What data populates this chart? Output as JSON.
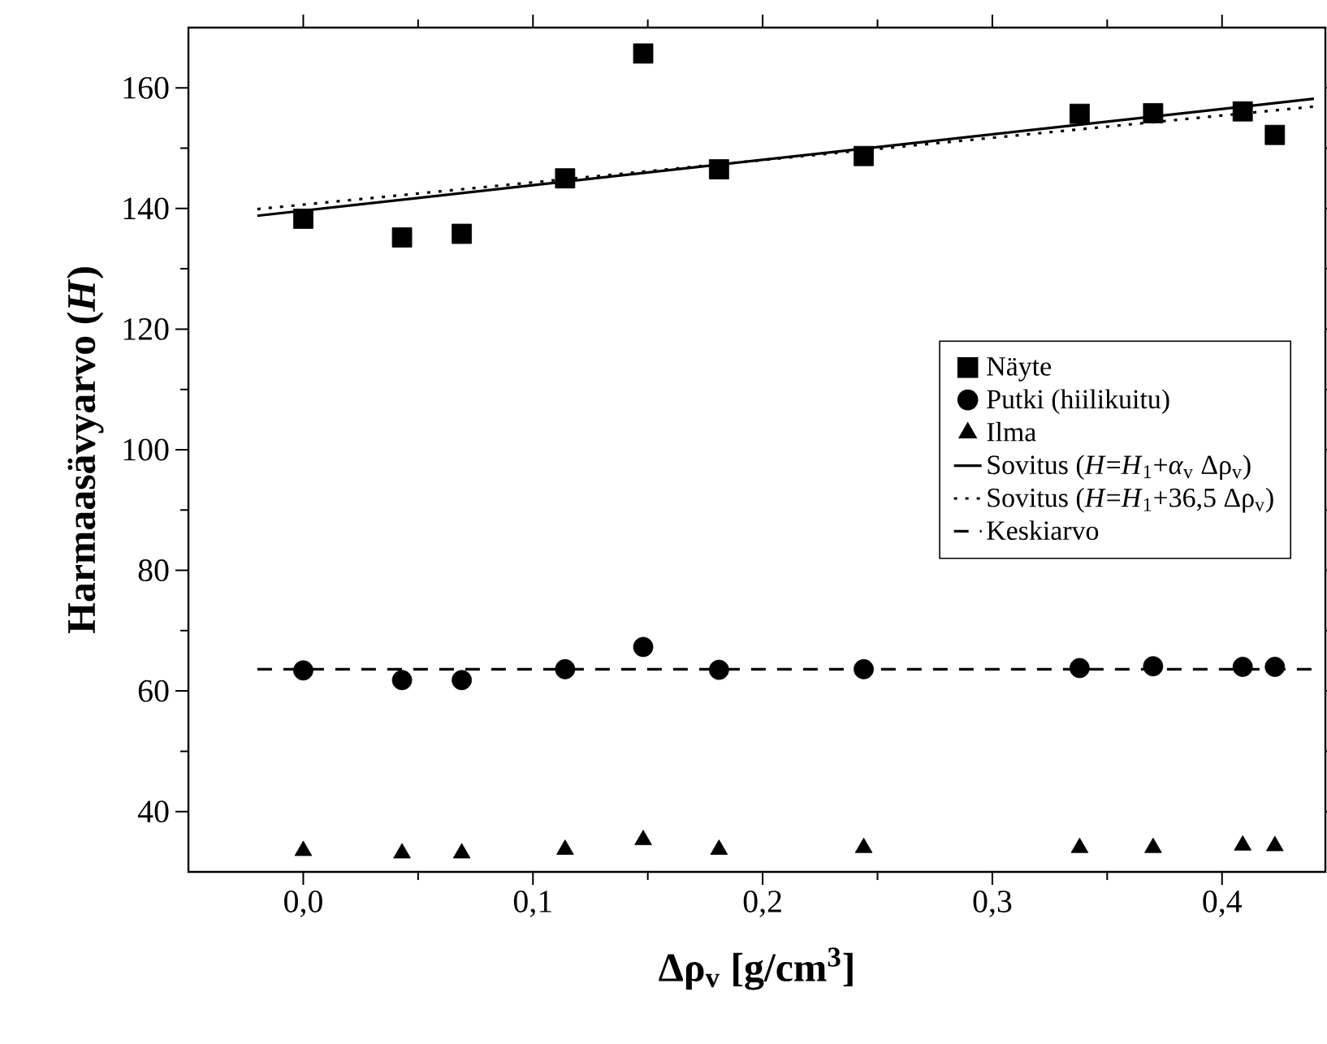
{
  "chart_data": {
    "type": "scatter",
    "xlabel": "Δρ$_{v}$ [g/cm$^{3}$]",
    "ylabel": "Harmaasävyarvo (*H*)",
    "xlim": [
      -0.05,
      0.445
    ],
    "ylim": [
      30,
      170
    ],
    "xticks": [
      {
        "value": 0,
        "label": "0,0"
      },
      {
        "value": 0.1,
        "label": "0,1"
      },
      {
        "value": 0.2,
        "label": "0,2"
      },
      {
        "value": 0.3,
        "label": "0,3"
      },
      {
        "value": 0.4,
        "label": "0,4"
      }
    ],
    "yticks": [
      40,
      60,
      80,
      100,
      120,
      140,
      160
    ],
    "legend": "right",
    "grid": false,
    "series": [
      {
        "name": "Näyte",
        "type": "scatter",
        "marker": "square",
        "color": "#000000",
        "x": [
          0.0,
          0.043,
          0.069,
          0.114,
          0.148,
          0.181,
          0.244,
          0.338,
          0.37,
          0.409,
          0.423
        ],
        "values": [
          138.3,
          135.2,
          135.8,
          145.0,
          165.7,
          146.5,
          148.7,
          155.7,
          155.8,
          156.1,
          152.2
        ]
      },
      {
        "name": "Putki (hiilikuitu)",
        "type": "scatter",
        "marker": "circle",
        "color": "#000000",
        "x": [
          0.0,
          0.043,
          0.069,
          0.114,
          0.148,
          0.181,
          0.244,
          0.338,
          0.37,
          0.409,
          0.423
        ],
        "values": [
          63.4,
          61.8,
          61.8,
          63.6,
          67.3,
          63.5,
          63.6,
          63.8,
          64.1,
          64.0,
          64.0
        ]
      },
      {
        "name": "Ilma",
        "type": "scatter",
        "marker": "triangle",
        "color": "#000000",
        "x": [
          0.0,
          0.043,
          0.069,
          0.114,
          0.148,
          0.181,
          0.244,
          0.338,
          0.37,
          0.409,
          0.423
        ],
        "values": [
          33.5,
          33.1,
          33.1,
          33.7,
          35.3,
          33.7,
          34.0,
          34.0,
          34.0,
          34.4,
          34.3
        ]
      },
      {
        "name": "Sovitus (*H*=*H*$_{1}$+*α*$_{v}$ Δρ$_{v}$)",
        "type": "line",
        "line_style": "solid",
        "color": "#000000",
        "x": [
          -0.02,
          0.44
        ],
        "values": [
          138.8,
          158.2
        ]
      },
      {
        "name": "Sovitus (*H*=*H*$_{1}$+36,5 Δρ$_{v}$)",
        "type": "line",
        "line_style": "dotted",
        "color": "#000000",
        "x": [
          -0.02,
          0.44
        ],
        "values": [
          139.9,
          156.9
        ]
      },
      {
        "name": "Keskiarvo",
        "type": "line",
        "line_style": "dashed",
        "color": "#000000",
        "x": [
          -0.02,
          0.44
        ],
        "values": [
          63.6,
          63.6
        ]
      }
    ]
  }
}
